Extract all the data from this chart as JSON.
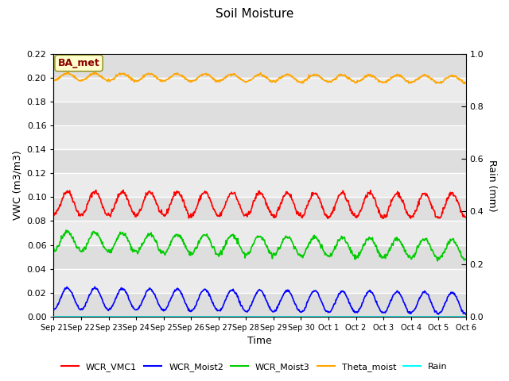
{
  "title": "Soil Moisture",
  "xlabel": "Time",
  "ylabel_left": "VWC (m3/m3)",
  "ylabel_right": "Rain (mm)",
  "ylim_left": [
    0.0,
    0.22
  ],
  "ylim_right": [
    0.0,
    1.0
  ],
  "yticks_left": [
    0.0,
    0.02,
    0.04,
    0.06,
    0.08,
    0.1,
    0.12,
    0.14,
    0.16,
    0.18,
    0.2,
    0.22
  ],
  "yticks_right": [
    0.0,
    0.2,
    0.4,
    0.6,
    0.8,
    1.0
  ],
  "bg_light": "#ebebeb",
  "bg_dark": "#dedede",
  "annotation_text": "BA_met",
  "annotation_color": "#8B0000",
  "annotation_bg": "#ffffcc",
  "annotation_edge": "#999933",
  "n_points": 800,
  "series": {
    "WCR_VMC1": {
      "color": "red",
      "mean": 0.095,
      "amplitude": 0.01,
      "period_hours": 24.0,
      "noise_scale": 0.001,
      "trend": -0.002
    },
    "WCR_Moist2": {
      "color": "blue",
      "mean": 0.015,
      "amplitude": 0.009,
      "period_hours": 24.0,
      "noise_scale": 0.0005,
      "trend": -0.004
    },
    "WCR_Moist3": {
      "color": "#00cc00",
      "mean": 0.063,
      "amplitude": 0.008,
      "period_hours": 24.0,
      "noise_scale": 0.001,
      "trend": -0.007
    },
    "Theta_moist": {
      "color": "orange",
      "mean": 0.201,
      "amplitude": 0.003,
      "period_hours": 24.0,
      "noise_scale": 0.0005,
      "trend": -0.002
    },
    "Rain": {
      "color": "cyan",
      "mean": 0.0,
      "amplitude": 0.0,
      "period_hours": 24.0,
      "noise_scale": 0.0,
      "trend": 0.0
    }
  },
  "xtick_labels": [
    "Sep 21",
    "Sep 22",
    "Sep 23",
    "Sep 24",
    "Sep 25",
    "Sep 26",
    "Sep 27",
    "Sep 28",
    "Sep 29",
    "Sep 30",
    "Oct 1",
    "Oct 2",
    "Oct 3",
    "Oct 4",
    "Oct 5",
    "Oct 6"
  ],
  "n_days": 15,
  "figsize": [
    6.4,
    4.8
  ],
  "dpi": 100
}
